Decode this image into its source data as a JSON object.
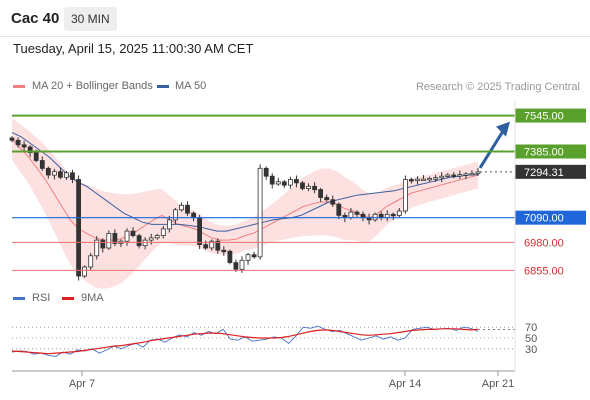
{
  "header": {
    "symbol": "Cac 40",
    "timeframe": "30 MIN",
    "datetime": "Tuesday, April 15, 2025 11:00:30 AM CET"
  },
  "legend": {
    "ma20_label": "MA 20 + Bollinger Bands",
    "ma50_label": "MA 50",
    "credit": "Research © 2025 Trading Central"
  },
  "rsi_legend": {
    "rsi_label": "RSI",
    "ma_label": "9MA"
  },
  "colors": {
    "ma20": "#f08080",
    "ma50": "#3a5fa0",
    "band": "#fcd6d6",
    "resistance": "#5aa02c",
    "current": "#333333",
    "pivot": "#2166d8",
    "support": "#f07070",
    "rsi": "#4472c4",
    "rsi_ma": "#e02020"
  },
  "chart_data": [
    {
      "type": "candlestick",
      "title": "",
      "x_ticks": [
        "Apr 7",
        "Apr 14",
        "Apr 21"
      ],
      "ylim": [
        6790,
        7610
      ],
      "price_levels": [
        {
          "label": "7545.00",
          "value": 7545,
          "kind": "resistance"
        },
        {
          "label": "7385.00",
          "value": 7385,
          "kind": "resistance"
        },
        {
          "label": "7294.31",
          "value": 7294.31,
          "kind": "current"
        },
        {
          "label": "7090.00",
          "value": 7090,
          "kind": "pivot"
        },
        {
          "label": "6980.00",
          "value": 6980,
          "kind": "support"
        },
        {
          "label": "6855.00",
          "value": 6855,
          "kind": "support"
        }
      ],
      "close_series": [
        7435,
        7415,
        7405,
        7380,
        7345,
        7310,
        7280,
        7295,
        7270,
        7290,
        7260,
        6830,
        6870,
        6920,
        6990,
        6955,
        7020,
        6975,
        6985,
        7030,
        7010,
        6965,
        6990,
        7000,
        7010,
        7040,
        7080,
        7125,
        7145,
        7110,
        7090,
        6970,
        6955,
        6985,
        6945,
        6940,
        6890,
        6860,
        6900,
        6925,
        6915,
        7310,
        7275,
        7240,
        7250,
        7235,
        7260,
        7245,
        7220,
        7230,
        7215,
        7180,
        7170,
        7150,
        7100,
        7090,
        7115,
        7105,
        7090,
        7080,
        7105,
        7090,
        7105,
        7100,
        7120,
        7260,
        7258,
        7262,
        7262,
        7265,
        7268,
        7275,
        7280,
        7278,
        7282,
        7285,
        7288,
        7294
      ],
      "ma20_series": [
        7440,
        7400,
        7360,
        7310,
        7260,
        7200,
        7140,
        7080,
        7040,
        7020,
        7000,
        6990,
        6990,
        6995,
        7010,
        7030,
        7055,
        7080,
        7100,
        7080,
        7060,
        7050,
        7040,
        7020,
        7000,
        6990,
        6990,
        6995,
        7010,
        7020,
        7040,
        7060,
        7080,
        7100,
        7120,
        7140,
        7150,
        7160,
        7160,
        7150,
        7130,
        7120,
        7100,
        7090,
        7110,
        7140,
        7160,
        7180,
        7200,
        7210,
        7220,
        7230,
        7240,
        7250,
        7260,
        7270,
        7280
      ],
      "ma50_series": [
        7470,
        7450,
        7420,
        7390,
        7360,
        7320,
        7280,
        7250,
        7230,
        7200,
        7170,
        7140,
        7110,
        7090,
        7070,
        7060,
        7060,
        7060,
        7060,
        7055,
        7050,
        7040,
        7030,
        7030,
        7040,
        7050,
        7060,
        7070,
        7080,
        7085,
        7090,
        7100,
        7120,
        7140,
        7160,
        7170,
        7180,
        7190,
        7195,
        7200,
        7205,
        7210,
        7220,
        7230,
        7240,
        7250,
        7260,
        7270,
        7275,
        7280,
        7282
      ],
      "forecast_target": 7545
    },
    {
      "type": "line",
      "title": "",
      "ylim": [
        0,
        100
      ],
      "y_ticks": [
        "70",
        "50",
        "30"
      ],
      "series": [
        {
          "name": "RSI",
          "values": [
            24,
            26,
            25,
            20,
            22,
            18,
            16,
            24,
            20,
            28,
            26,
            30,
            22,
            28,
            35,
            30,
            36,
            40,
            33,
            46,
            48,
            42,
            50,
            56,
            52,
            60,
            55,
            62,
            58,
            66,
            48,
            46,
            52,
            44,
            46,
            48,
            52,
            50,
            40,
            54,
            70,
            68,
            72,
            66,
            62,
            64,
            58,
            52,
            46,
            50,
            54,
            48,
            52,
            46,
            50,
            66,
            68,
            70,
            66,
            67,
            68,
            64,
            70,
            68,
            62
          ]
        },
        {
          "name": "9MA",
          "values": [
            26,
            25,
            24,
            23,
            22,
            21,
            22,
            23,
            24,
            25,
            27,
            29,
            31,
            33,
            35,
            36,
            38,
            40,
            42,
            45,
            47,
            49,
            51,
            53,
            55,
            57,
            58,
            59,
            59,
            58,
            56,
            54,
            52,
            51,
            50,
            50,
            50,
            51,
            53,
            56,
            59,
            62,
            64,
            65,
            64,
            62,
            60,
            58,
            56,
            55,
            56,
            57,
            58,
            60,
            62,
            64,
            65,
            66,
            66,
            67,
            67,
            67,
            66,
            65,
            66
          ]
        }
      ]
    }
  ]
}
